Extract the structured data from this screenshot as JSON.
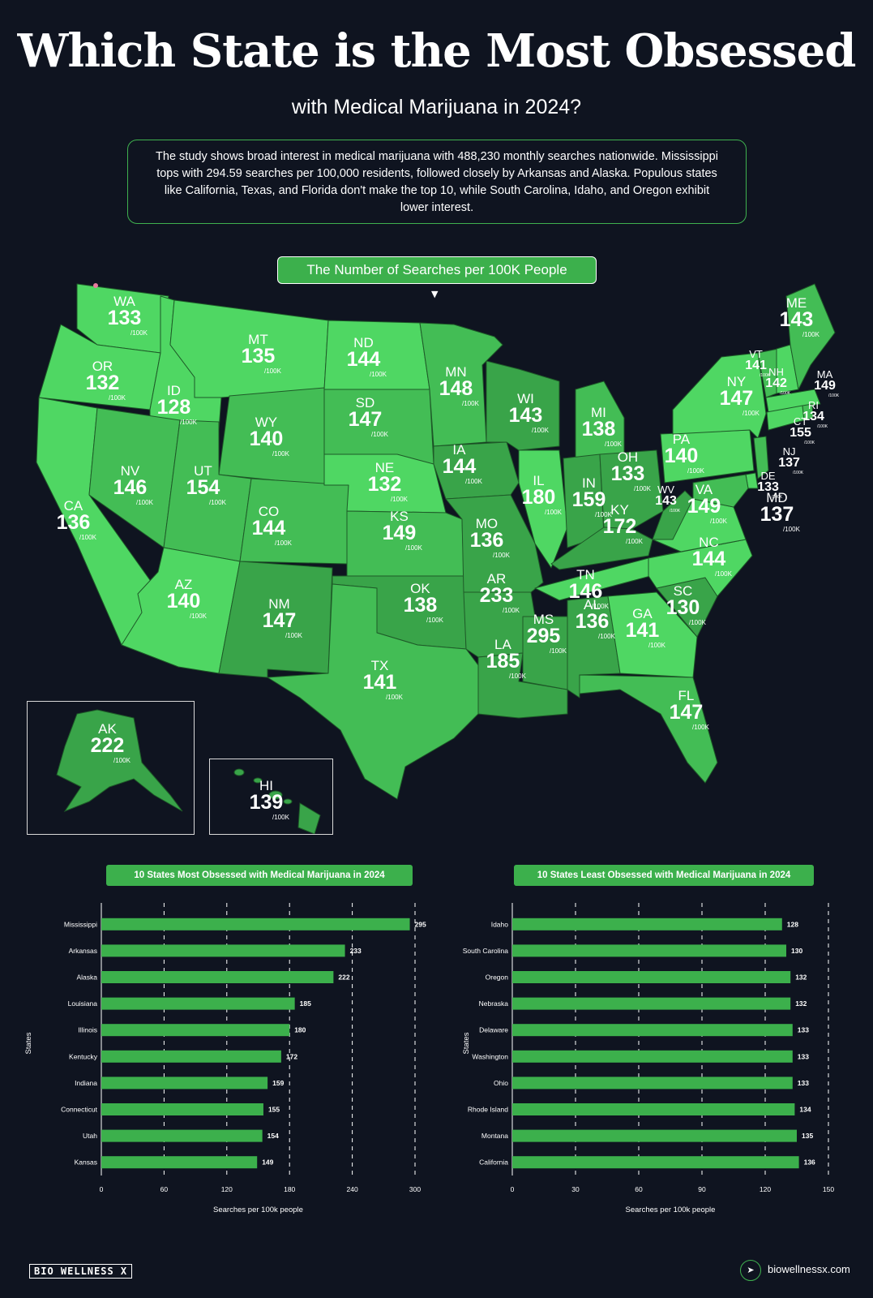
{
  "header": {
    "title": "Which State is the Most Obsessed",
    "subtitle": "with Medical Marijuana in 2024?",
    "summary": "The study shows broad interest in medical marijuana with 488,230 monthly searches nationwide. Mississippi tops with 294.59 searches per 100,000 residents, followed closely by Arkansas and Alaska. Populous states like California, Texas, and Florida don't make the top 10, while South Carolina, Idaho, and Oregon exhibit lower interest."
  },
  "map": {
    "label": "The Number of Searches per 100K People",
    "unit": "/100K",
    "colors": {
      "light": "#4fd763",
      "mid": "#43bd55",
      "dark": "#39a449",
      "background": "#0f1420"
    },
    "states": [
      {
        "abbr": "WA",
        "value": "133"
      },
      {
        "abbr": "OR",
        "value": "132"
      },
      {
        "abbr": "CA",
        "value": "136"
      },
      {
        "abbr": "ID",
        "value": "128"
      },
      {
        "abbr": "NV",
        "value": "146"
      },
      {
        "abbr": "MT",
        "value": "135"
      },
      {
        "abbr": "WY",
        "value": "140"
      },
      {
        "abbr": "UT",
        "value": "154"
      },
      {
        "abbr": "AZ",
        "value": "140"
      },
      {
        "abbr": "CO",
        "value": "144"
      },
      {
        "abbr": "NM",
        "value": "147"
      },
      {
        "abbr": "ND",
        "value": "144"
      },
      {
        "abbr": "SD",
        "value": "147"
      },
      {
        "abbr": "NE",
        "value": "132"
      },
      {
        "abbr": "KS",
        "value": "149"
      },
      {
        "abbr": "OK",
        "value": "138"
      },
      {
        "abbr": "TX",
        "value": "141"
      },
      {
        "abbr": "MN",
        "value": "148"
      },
      {
        "abbr": "IA",
        "value": "144"
      },
      {
        "abbr": "MO",
        "value": "136"
      },
      {
        "abbr": "AR",
        "value": "233"
      },
      {
        "abbr": "LA",
        "value": "185"
      },
      {
        "abbr": "WI",
        "value": "143"
      },
      {
        "abbr": "IL",
        "value": "180"
      },
      {
        "abbr": "MS",
        "value": "295"
      },
      {
        "abbr": "MI",
        "value": "138"
      },
      {
        "abbr": "IN",
        "value": "159"
      },
      {
        "abbr": "KY",
        "value": "172"
      },
      {
        "abbr": "TN",
        "value": "146"
      },
      {
        "abbr": "AL",
        "value": "136"
      },
      {
        "abbr": "OH",
        "value": "133"
      },
      {
        "abbr": "WV",
        "value": "143"
      },
      {
        "abbr": "GA",
        "value": "141"
      },
      {
        "abbr": "FL",
        "value": "147"
      },
      {
        "abbr": "SC",
        "value": "130"
      },
      {
        "abbr": "NC",
        "value": "144"
      },
      {
        "abbr": "VA",
        "value": "149"
      },
      {
        "abbr": "PA",
        "value": "140"
      },
      {
        "abbr": "NY",
        "value": "147"
      },
      {
        "abbr": "VT",
        "value": "141"
      },
      {
        "abbr": "NH",
        "value": "142"
      },
      {
        "abbr": "ME",
        "value": "143"
      },
      {
        "abbr": "MA",
        "value": "149"
      },
      {
        "abbr": "RI",
        "value": "134"
      },
      {
        "abbr": "CT",
        "value": "155"
      },
      {
        "abbr": "NJ",
        "value": "137"
      },
      {
        "abbr": "DE",
        "value": "133"
      },
      {
        "abbr": "MD",
        "value": "137"
      },
      {
        "abbr": "AK",
        "value": "222"
      },
      {
        "abbr": "HI",
        "value": "139"
      }
    ]
  },
  "chart_data": [
    {
      "type": "bar",
      "orientation": "horizontal",
      "title": "10 States Most Obsessed with Medical Marijuana in 2024",
      "xlabel": "Searches per 100k people",
      "ylabel": "States",
      "categories": [
        "Mississippi",
        "Arkansas",
        "Alaska",
        "Louisiana",
        "Illinois",
        "Kentucky",
        "Indiana",
        "Connecticut",
        "Utah",
        "Kansas"
      ],
      "values": [
        295,
        233,
        222,
        185,
        180,
        172,
        159,
        155,
        154,
        149
      ],
      "xlim": [
        0,
        300
      ],
      "xticks": [
        0,
        60,
        120,
        180,
        240,
        300
      ],
      "grid": true,
      "color": "#3cb04c"
    },
    {
      "type": "bar",
      "orientation": "horizontal",
      "title": "10 States Least Obsessed with Medical Marijuana in 2024",
      "xlabel": "Searches per 100k people",
      "ylabel": "States",
      "categories": [
        "Idaho",
        "South Carolina",
        "Oregon",
        "Nebraska",
        "Delaware",
        "Washington",
        "Ohio",
        "Rhode Island",
        "Montana",
        "California"
      ],
      "values": [
        128,
        130,
        132,
        132,
        133,
        133,
        133,
        134,
        135,
        136
      ],
      "xlim": [
        0,
        150
      ],
      "xticks": [
        0,
        30,
        60,
        90,
        120,
        150
      ],
      "grid": true,
      "color": "#3cb04c"
    }
  ],
  "footer": {
    "logo": "BIO WELLNESS X",
    "site": "biowellnessx.com",
    "cursor_icon": "cursor-icon"
  }
}
